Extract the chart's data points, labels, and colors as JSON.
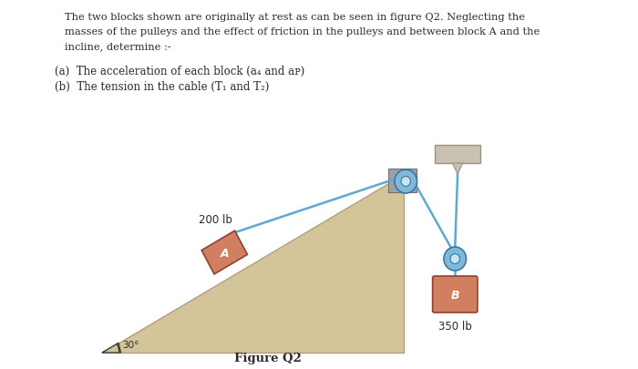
{
  "bg_color": "#ffffff",
  "text_color": "#2a2a2a",
  "title_lines": [
    "The two blocks shown are originally at rest as can be seen in figure Q2. Neglecting the",
    "masses of the pulleys and the effect of friction in the pulleys and between block A and the",
    "incline, determine :-"
  ],
  "part_a": "(a)  The acceleration of each block (a₄ and aᴩ)",
  "part_b": "(b)  The tension in the cable (T₁ and T₂)",
  "figure_label": "Figure Q2",
  "incline_color": "#d4c49a",
  "incline_edge_color": "#b0a080",
  "incline_shadow_color": "#b8a888",
  "block_a_color": "#d08060",
  "block_a_edge": "#904030",
  "block_b_color": "#d08060",
  "block_b_edge": "#904030",
  "cable_color": "#60a8d0",
  "pulley_outer_color": "#80b8d8",
  "pulley_inner_color": "#c8e4f0",
  "pulley_edge_color": "#3878a8",
  "wall_color": "#c8c0b0",
  "wall_edge_color": "#a09080",
  "weight_a": "200 lb",
  "weight_b": "350 lb",
  "label_a": "A",
  "label_b": "B",
  "angle_label": "30°"
}
